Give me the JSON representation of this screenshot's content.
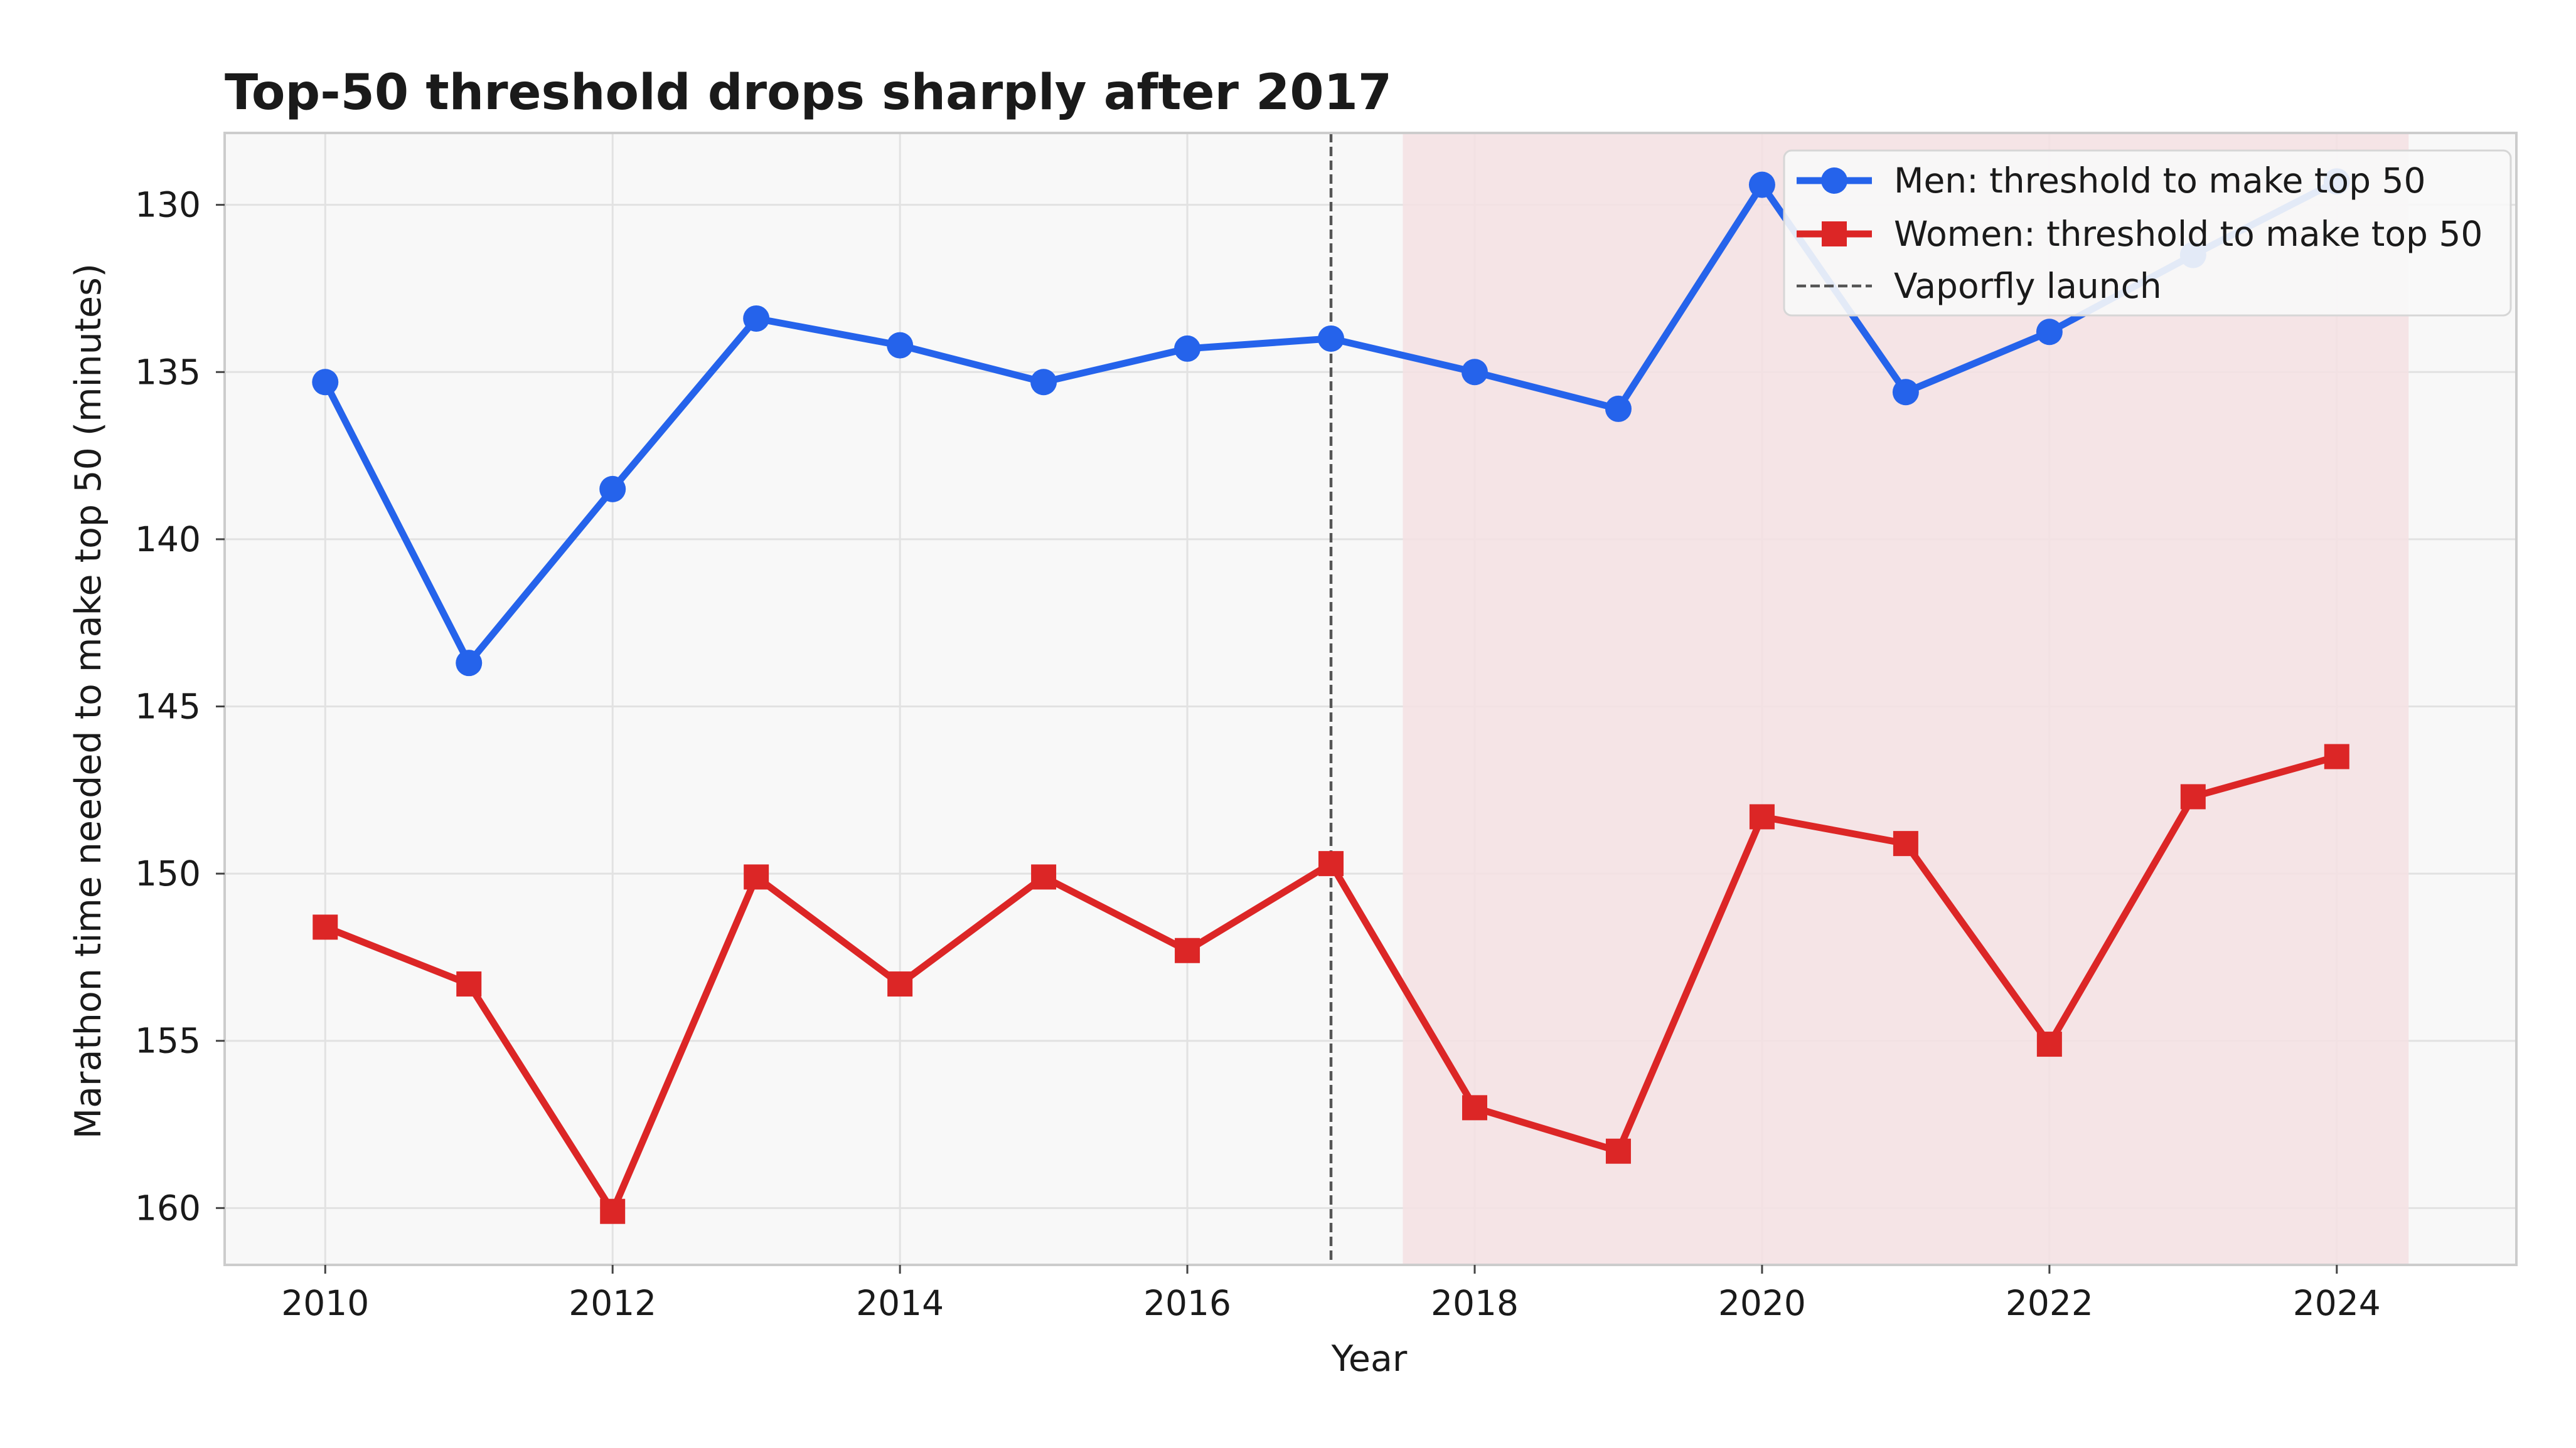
{
  "chart_data": {
    "type": "line",
    "title": "Top-50 threshold drops sharply after 2017",
    "xlabel": "Year",
    "ylabel": "Marathon time needed to make top 50 (minutes)",
    "x": [
      2010,
      2011,
      2012,
      2013,
      2014,
      2015,
      2016,
      2017,
      2018,
      2019,
      2020,
      2021,
      2022,
      2023,
      2024
    ],
    "xlim": [
      2009.3,
      2025.25
    ],
    "ylim": [
      161.7,
      127.85
    ],
    "y_inverted": true,
    "x_ticks": [
      "2010",
      "2012",
      "2014",
      "2016",
      "2018",
      "2020",
      "2022",
      "2024"
    ],
    "y_ticks": [
      "130",
      "135",
      "140",
      "145",
      "150",
      "155",
      "160"
    ],
    "grid": true,
    "legend_position": "top-right",
    "series": [
      {
        "name": "Men: threshold to make top 50",
        "color": "#2563eb",
        "marker": "circle",
        "values": [
          135.3,
          143.7,
          138.5,
          133.4,
          134.2,
          135.3,
          134.3,
          134.0,
          135.0,
          136.1,
          129.4,
          135.6,
          133.8,
          131.5,
          129.3
        ]
      },
      {
        "name": "Women: threshold to make top 50",
        "color": "#dc2626",
        "marker": "square",
        "values": [
          151.6,
          153.3,
          160.1,
          150.1,
          153.3,
          150.1,
          152.3,
          149.7,
          157.0,
          158.3,
          148.3,
          149.1,
          155.1,
          147.7,
          146.5
        ]
      }
    ],
    "reference_line": {
      "label": "Vaporfly launch",
      "x": 2017,
      "color": "#555555",
      "style": "dashed"
    },
    "shaded_region": {
      "x": [
        2017.5,
        2024.5
      ],
      "color": "#f5e1e3"
    }
  }
}
